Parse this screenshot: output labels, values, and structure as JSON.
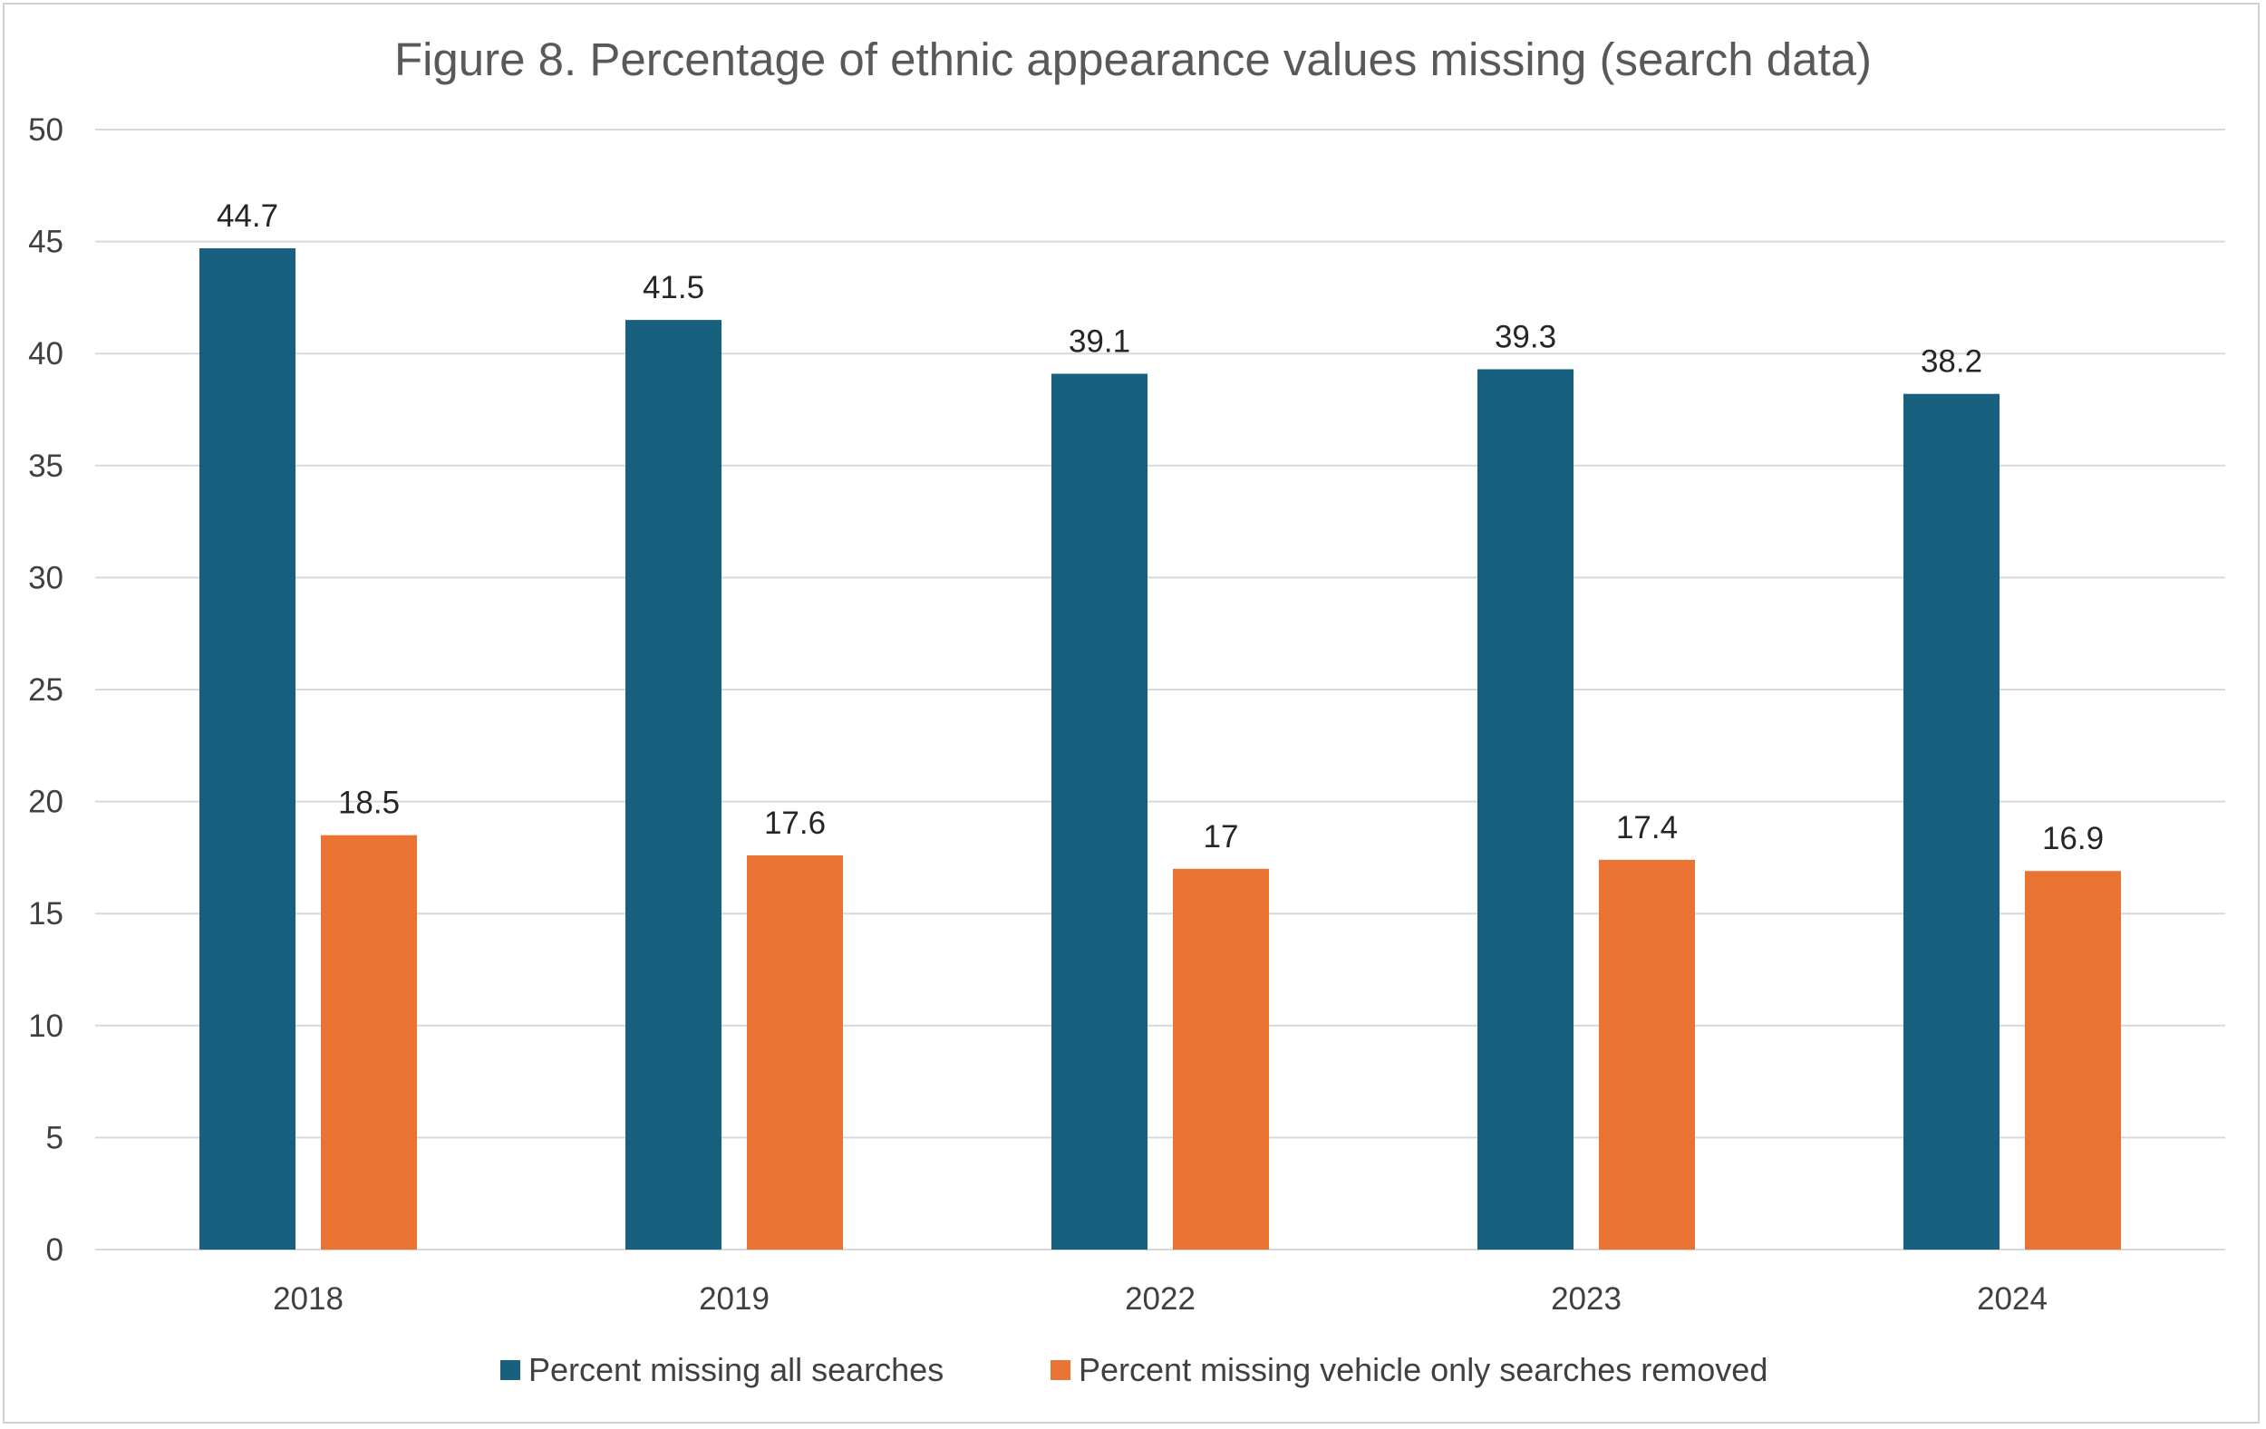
{
  "chart_data": {
    "type": "bar",
    "title": "Figure 8. Percentage of ethnic appearance values missing (search data)",
    "xlabel": "",
    "ylabel": "",
    "categories": [
      "2018",
      "2019",
      "2022",
      "2023",
      "2024"
    ],
    "ylim": [
      0,
      50
    ],
    "yticks": [
      0,
      5,
      10,
      15,
      20,
      25,
      30,
      35,
      40,
      45,
      50
    ],
    "grid": true,
    "legend_position": "bottom",
    "series": [
      {
        "name": "Percent missing all searches",
        "color": "#17607f",
        "values": [
          44.7,
          41.5,
          39.1,
          39.3,
          38.2
        ],
        "labels": [
          "44.7",
          "41.5",
          "39.1",
          "39.3",
          "38.2"
        ]
      },
      {
        "name": "Percent missing vehicle only searches removed",
        "color": "#e87333",
        "values": [
          18.5,
          17.6,
          17,
          17.4,
          16.9
        ],
        "labels": [
          "18.5",
          "17.6",
          "17",
          "17.4",
          "16.9"
        ]
      }
    ]
  }
}
